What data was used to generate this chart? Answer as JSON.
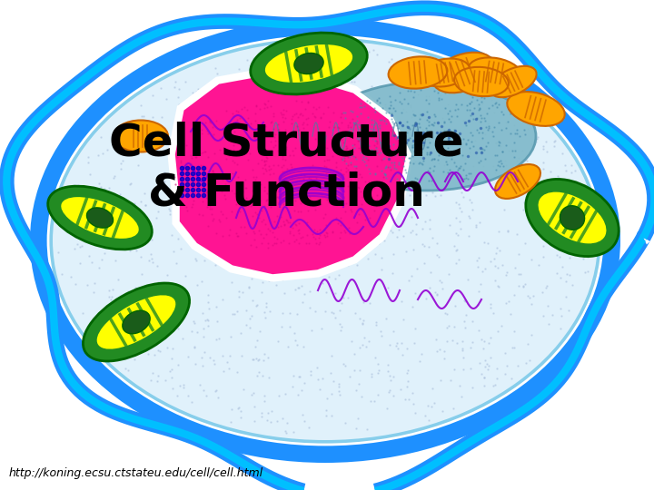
{
  "title": "Cell Structure\n& Function",
  "title_fontsize": 36,
  "title_color": "black",
  "title_fontweight": "bold",
  "url_text": "http://koning.ecsu.ctstateu.edu/cell/cell.html",
  "url_fontsize": 9,
  "background_color": "white",
  "cell_outer_color": "#1E90FF",
  "cell_inner_color": "#00BFFF",
  "cytoplasm_color": "#E8F4F8",
  "nucleus_color": "#FF1493",
  "nucleus_outline": "white",
  "vacuole_color": "#7EB8C9",
  "vacuole_outline": "#5A9AB0",
  "chloroplast_fill": "#90EE90",
  "chloroplast_stripe": "#FFFF00",
  "mitochondria_color": "#FFA500"
}
